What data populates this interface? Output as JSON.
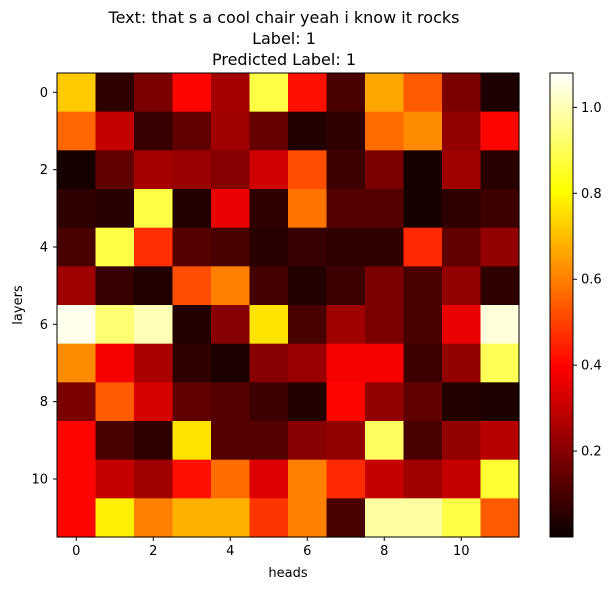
{
  "chart_data": {
    "type": "heatmap",
    "title_lines": [
      "Text: that s a cool chair yeah i know it rocks",
      "Label: 1",
      "Predicted Label: 1"
    ],
    "xlabel": "heads",
    "ylabel": "layers",
    "x_ticks": [
      0,
      2,
      4,
      6,
      8,
      10
    ],
    "y_ticks": [
      0,
      2,
      4,
      6,
      8,
      10
    ],
    "colormap": "hot",
    "vmin": 0.0,
    "vmax": 1.08,
    "colorbar_ticks": [
      0.2,
      0.4,
      0.6,
      0.8,
      1.0
    ],
    "colorbar_tick_labels": [
      "0.2",
      "0.4",
      "0.6",
      "0.8",
      "1.0"
    ],
    "rows": 12,
    "cols": 12,
    "values": [
      [
        0.72,
        0.06,
        0.18,
        0.4,
        0.25,
        0.88,
        0.42,
        0.1,
        0.66,
        0.54,
        0.18,
        0.03
      ],
      [
        0.56,
        0.3,
        0.07,
        0.14,
        0.24,
        0.15,
        0.04,
        0.06,
        0.57,
        0.62,
        0.22,
        0.4
      ],
      [
        0.02,
        0.14,
        0.25,
        0.23,
        0.2,
        0.32,
        0.52,
        0.08,
        0.18,
        0.02,
        0.24,
        0.05
      ],
      [
        0.06,
        0.05,
        0.88,
        0.04,
        0.36,
        0.06,
        0.58,
        0.12,
        0.12,
        0.02,
        0.06,
        0.08
      ],
      [
        0.1,
        0.88,
        0.47,
        0.12,
        0.1,
        0.05,
        0.07,
        0.06,
        0.06,
        0.46,
        0.14,
        0.22
      ],
      [
        0.24,
        0.07,
        0.04,
        0.52,
        0.6,
        0.09,
        0.04,
        0.08,
        0.18,
        0.1,
        0.22,
        0.06
      ],
      [
        1.06,
        0.93,
        1.0,
        0.04,
        0.2,
        0.76,
        0.1,
        0.24,
        0.18,
        0.1,
        0.36,
        1.04
      ],
      [
        0.62,
        0.38,
        0.26,
        0.06,
        0.03,
        0.2,
        0.23,
        0.38,
        0.38,
        0.08,
        0.22,
        0.9
      ],
      [
        0.18,
        0.54,
        0.33,
        0.14,
        0.12,
        0.08,
        0.04,
        0.4,
        0.22,
        0.14,
        0.04,
        0.03
      ],
      [
        0.4,
        0.1,
        0.06,
        0.76,
        0.12,
        0.12,
        0.2,
        0.22,
        0.91,
        0.1,
        0.22,
        0.28
      ],
      [
        0.4,
        0.3,
        0.24,
        0.42,
        0.57,
        0.34,
        0.6,
        0.46,
        0.3,
        0.24,
        0.3,
        0.86
      ],
      [
        0.4,
        0.78,
        0.6,
        0.68,
        0.68,
        0.48,
        0.6,
        0.1,
        0.98,
        0.98,
        0.88,
        0.54
      ]
    ]
  }
}
